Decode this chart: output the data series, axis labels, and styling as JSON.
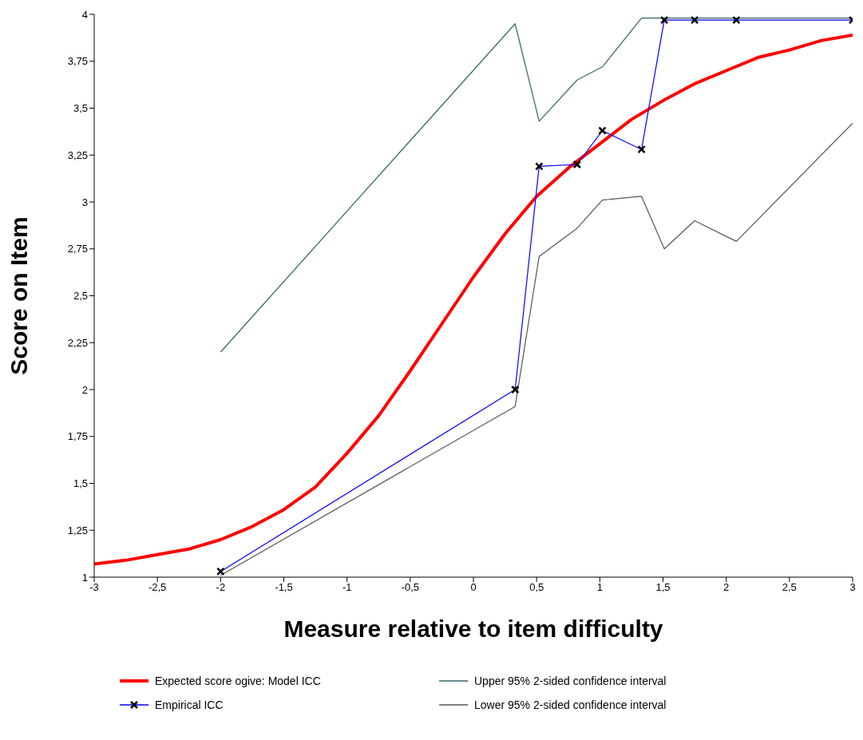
{
  "chart_data": {
    "type": "line",
    "xlabel": "Measure relative to item difficulty",
    "ylabel": "Score on Item",
    "xlim": [
      -3,
      3
    ],
    "ylim": [
      1,
      4
    ],
    "xticks": [
      -3,
      {
        "value": -2.5,
        "label": "-2,5"
      },
      -2,
      {
        "value": -1.5,
        "label": "-1,5"
      },
      -1,
      {
        "value": -0.5,
        "label": "-0,5"
      },
      0,
      {
        "value": 0.5,
        "label": "0,5"
      },
      1,
      {
        "value": 1.5,
        "label": "1,5"
      },
      2,
      {
        "value": 2.5,
        "label": "2,5"
      },
      3
    ],
    "yticks": [
      1,
      {
        "value": 1.25,
        "label": "1,25"
      },
      {
        "value": 1.5,
        "label": "1,5"
      },
      {
        "value": 1.75,
        "label": "1,75"
      },
      2,
      {
        "value": 2.25,
        "label": "2,25"
      },
      {
        "value": 2.5,
        "label": "2,5"
      },
      {
        "value": 2.75,
        "label": "2,75"
      },
      3,
      {
        "value": 3.25,
        "label": "3,25"
      },
      {
        "value": 3.5,
        "label": "3,5"
      },
      {
        "value": 3.75,
        "label": "3,75"
      },
      4
    ],
    "grid": false,
    "legend": "bottom",
    "line_style": "solid",
    "series": [
      {
        "name": "Expected score ogive: Model ICC",
        "color": "#ff0000",
        "marker": "none",
        "x": [
          -3,
          -2.75,
          -2.5,
          -2.25,
          -2,
          -1.75,
          -1.5,
          -1.25,
          -1,
          -0.75,
          -0.5,
          -0.25,
          0,
          0.25,
          0.5,
          0.75,
          1,
          1.25,
          1.5,
          1.75,
          2,
          2.25,
          2.5,
          2.75,
          3
        ],
        "values": [
          1.07,
          1.09,
          1.12,
          1.15,
          1.2,
          1.27,
          1.36,
          1.48,
          1.66,
          1.86,
          2.1,
          2.35,
          2.6,
          2.83,
          3.03,
          3.18,
          3.31,
          3.44,
          3.54,
          3.63,
          3.7,
          3.77,
          3.81,
          3.86,
          3.89
        ]
      },
      {
        "name": "Empirical ICC",
        "color": "#0000ff",
        "marker": "cross",
        "x": [
          -2,
          0.33,
          0.52,
          0.82,
          1.02,
          1.33,
          1.51,
          1.75,
          2.08,
          3
        ],
        "values": [
          1.03,
          2.0,
          3.19,
          3.2,
          3.38,
          3.28,
          3.97,
          3.97,
          3.97,
          3.97
        ]
      },
      {
        "name": "Upper 95% 2-sided confidence interval",
        "color": "#336666",
        "marker": "none",
        "x": [
          -2,
          0.33,
          0.52,
          0.82,
          1.02,
          1.33,
          1.51,
          1.75,
          2.08,
          3
        ],
        "values": [
          2.2,
          3.95,
          3.43,
          3.65,
          3.72,
          3.98,
          3.98,
          3.98,
          3.98,
          3.98
        ]
      },
      {
        "name": "Lower 95% 2-sided confidence interval",
        "color": "#555555",
        "marker": "none",
        "x": [
          -2,
          0.33,
          0.52,
          0.82,
          1.02,
          1.33,
          1.51,
          1.75,
          2.08,
          3
        ],
        "values": [
          1.01,
          1.91,
          2.71,
          2.86,
          3.01,
          3.03,
          2.75,
          2.9,
          2.79,
          3.42
        ]
      }
    ]
  }
}
